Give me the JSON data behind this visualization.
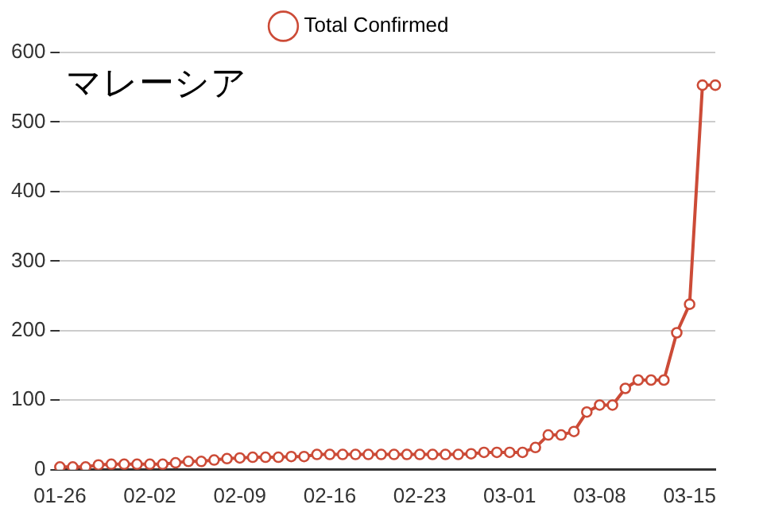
{
  "chart_data": {
    "type": "line",
    "title": "マレーシア",
    "categories": [
      "01-26",
      null,
      null,
      null,
      null,
      null,
      null,
      "02-02",
      null,
      null,
      null,
      null,
      null,
      null,
      "02-09",
      null,
      null,
      null,
      null,
      null,
      null,
      "02-16",
      null,
      null,
      null,
      null,
      null,
      null,
      "02-23",
      null,
      null,
      null,
      null,
      null,
      null,
      "03-01",
      null,
      null,
      null,
      null,
      null,
      null,
      "03-08",
      null,
      null,
      null,
      null,
      null,
      null,
      "03-15",
      null,
      null
    ],
    "series": [
      {
        "name": "Total Confirmed",
        "color": "#cc4b37",
        "values": [
          4,
          4,
          4,
          7,
          8,
          8,
          8,
          8,
          8,
          10,
          12,
          12,
          14,
          16,
          17,
          18,
          18,
          18,
          19,
          19,
          22,
          22,
          22,
          22,
          22,
          22,
          22,
          22,
          22,
          22,
          22,
          22,
          23,
          25,
          25,
          25,
          25,
          32,
          50,
          50,
          55,
          83,
          93,
          93,
          117,
          129,
          129,
          129,
          197,
          238,
          553,
          553
        ]
      }
    ],
    "ylim": [
      0,
      600
    ],
    "yticks": [
      0,
      100,
      200,
      300,
      400,
      500,
      600
    ],
    "grid": "y",
    "legend": "top",
    "marker": "circle",
    "line_style": "solid"
  }
}
